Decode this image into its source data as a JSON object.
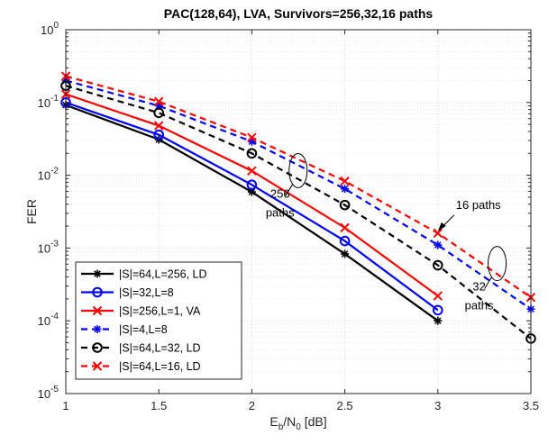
{
  "chart_data": {
    "type": "line",
    "title": "PAC(128,64), LVA, Survivors=256,32,16 paths",
    "xlabel": {
      "base": "E",
      "sub1": "b",
      "mid": "/N",
      "sub2": "0",
      "unit": " [dB]"
    },
    "ylabel": "FER",
    "x_scale": "linear",
    "y_scale": "log",
    "xlim": [
      1,
      3.5
    ],
    "ylim": [
      1e-05,
      1
    ],
    "x_ticks": [
      1,
      1.5,
      2,
      2.5,
      3,
      3.5
    ],
    "x_tick_labels": [
      "1",
      "1.5",
      "2",
      "2.5",
      "3",
      "3.5"
    ],
    "y_ticks": [
      1e-05,
      0.0001,
      0.001,
      0.01,
      0.1,
      1
    ],
    "y_tick_labels": [
      {
        "base": "10",
        "exp": "-5"
      },
      {
        "base": "10",
        "exp": "-4"
      },
      {
        "base": "10",
        "exp": "-3"
      },
      {
        "base": "10",
        "exp": "-2"
      },
      {
        "base": "10",
        "exp": "-1"
      },
      {
        "base": "10",
        "exp": "0"
      }
    ],
    "grid": true,
    "legend_position": "bottom-left",
    "series": [
      {
        "name": "|S|=64,L=256, LD",
        "color": "#000000",
        "dash": "solid",
        "marker": "asterisk",
        "x": [
          1,
          1.5,
          2,
          2.5,
          3
        ],
        "y": [
          0.092,
          0.031,
          0.0059,
          0.00083,
          0.0001
        ]
      },
      {
        "name": "|S|=32,L=8",
        "color": "#0000ff",
        "dash": "solid",
        "marker": "circle",
        "x": [
          1,
          1.5,
          2,
          2.5,
          3
        ],
        "y": [
          0.1,
          0.036,
          0.0074,
          0.00125,
          0.00014
        ]
      },
      {
        "name": "|S|=256,L=1, VA",
        "color": "#ff0000",
        "dash": "solid",
        "marker": "x",
        "x": [
          1,
          1.5,
          2,
          2.5,
          3
        ],
        "y": [
          0.13,
          0.048,
          0.0115,
          0.0019,
          0.00022
        ]
      },
      {
        "name": "|S|=4,L=8",
        "color": "#0000ff",
        "dash": "dashed",
        "marker": "asterisk",
        "x": [
          1,
          1.5,
          2,
          2.5,
          3,
          3.5
        ],
        "y": [
          0.2,
          0.09,
          0.029,
          0.0065,
          0.0011,
          0.000145
        ]
      },
      {
        "name": "|S|=64,L=32, LD",
        "color": "#000000",
        "dash": "dashed",
        "marker": "circle",
        "x": [
          1,
          1.5,
          2,
          2.5,
          3,
          3.5
        ],
        "y": [
          0.17,
          0.072,
          0.02,
          0.0039,
          0.00058,
          5.7e-05
        ]
      },
      {
        "name": "|S|=64,L=16, LD",
        "color": "#ff0000",
        "dash": "dashed",
        "marker": "x",
        "x": [
          1,
          1.5,
          2,
          2.5,
          3,
          3.5
        ],
        "y": [
          0.23,
          0.103,
          0.033,
          0.0083,
          0.0016,
          0.00021
        ]
      }
    ],
    "annotations": [
      {
        "kind": "ellipse-label",
        "lines": [
          "256",
          "paths"
        ],
        "x": 2.21,
        "y": 0.0035
      },
      {
        "kind": "ellipse-label",
        "lines": [
          "32",
          "paths"
        ],
        "x": 3.28,
        "y": 0.000185
      },
      {
        "kind": "arrow-label",
        "lines": [
          "16 paths"
        ],
        "x": 3.0,
        "y": 0.0016
      }
    ]
  }
}
